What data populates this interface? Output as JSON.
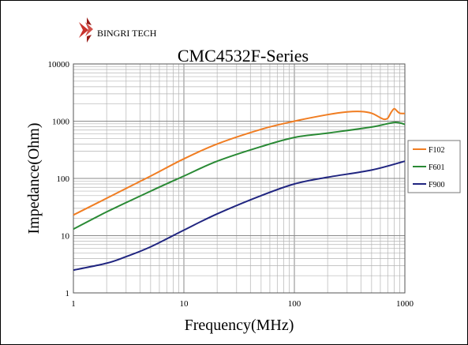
{
  "brand": {
    "name": "BINGRI TECH"
  },
  "chart_data": {
    "type": "line",
    "title": "CMC4532F-Series",
    "xlabel": "Frequency(MHz)",
    "ylabel": "Impedance(Ohm)",
    "xscale": "log",
    "yscale": "log",
    "xlim": [
      1,
      1000
    ],
    "ylim": [
      1,
      10000
    ],
    "xticks": [
      "1",
      "10",
      "100",
      "1000"
    ],
    "yticks": [
      "1",
      "10",
      "100",
      "1000",
      "10000"
    ],
    "grid": true,
    "legend_position": "right",
    "series": [
      {
        "name": "F102",
        "color": "#f07d22",
        "x": [
          1,
          2,
          5,
          10,
          20,
          50,
          100,
          200,
          300,
          400,
          500,
          600,
          650,
          700,
          750,
          800,
          850,
          900,
          1000
        ],
        "y": [
          23,
          45,
          110,
          220,
          400,
          720,
          1000,
          1300,
          1450,
          1480,
          1380,
          1150,
          1080,
          1130,
          1420,
          1650,
          1500,
          1380,
          1360
        ]
      },
      {
        "name": "F601",
        "color": "#2a8a35",
        "x": [
          1,
          2,
          5,
          10,
          20,
          50,
          100,
          200,
          500,
          800,
          1000
        ],
        "y": [
          13,
          26,
          60,
          110,
          200,
          360,
          520,
          620,
          790,
          950,
          880
        ]
      },
      {
        "name": "F900",
        "color": "#202580",
        "x": [
          1,
          2,
          3,
          5,
          10,
          20,
          50,
          100,
          200,
          500,
          1000
        ],
        "y": [
          2.5,
          3.3,
          4.3,
          6.4,
          12.5,
          24,
          50,
          80,
          105,
          140,
          200
        ]
      }
    ]
  }
}
